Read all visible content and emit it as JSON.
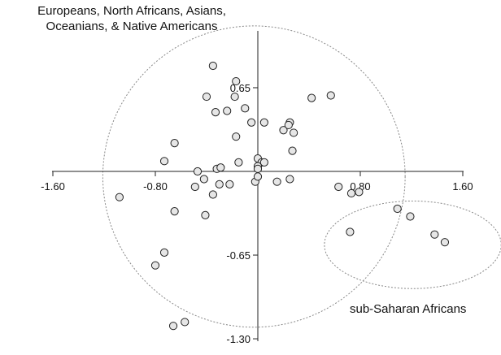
{
  "chart_data": {
    "type": "scatter",
    "title": "",
    "xlabel": "",
    "ylabel": "",
    "xlim": [
      -1.6,
      1.6
    ],
    "ylim": [
      -1.3,
      1.3
    ],
    "x_ticks": [
      -1.6,
      -0.8,
      0.8,
      1.6
    ],
    "x_tick_labels": [
      "-1.60",
      "-0.80",
      "0.80",
      "1.60"
    ],
    "y_ticks": [
      0.65,
      -0.65,
      -1.3
    ],
    "y_tick_labels": [
      "0.65",
      "-0.65",
      "-1.30"
    ],
    "grid": false,
    "clusters": [
      {
        "label_line1": "Europeans, North Africans, Asians,",
        "label_line2": "Oceanians, & Native Americans",
        "shape": "dotted-ellipse",
        "center": [
          -0.03,
          -0.04
        ],
        "radii": [
          1.18,
          1.17
        ]
      },
      {
        "label": "sub-Saharan Africans",
        "shape": "dotted-ellipse",
        "center": [
          1.21,
          -0.57
        ],
        "radii": [
          0.69,
          0.34
        ]
      }
    ],
    "series": [
      {
        "points": [
          [
            -0.35,
            0.82
          ],
          [
            -0.17,
            0.7
          ],
          [
            -0.4,
            0.58
          ],
          [
            -0.18,
            0.58
          ],
          [
            0.42,
            0.57
          ],
          [
            0.57,
            0.59
          ],
          [
            -0.1,
            0.49
          ],
          [
            -0.33,
            0.46
          ],
          [
            -0.24,
            0.47
          ],
          [
            0.25,
            0.38
          ],
          [
            0.05,
            0.38
          ],
          [
            -0.05,
            0.38
          ],
          [
            0.2,
            0.32
          ],
          [
            0.28,
            0.3
          ],
          [
            0.24,
            0.36
          ],
          [
            -0.17,
            0.27
          ],
          [
            -0.65,
            0.22
          ],
          [
            0.27,
            0.16
          ],
          [
            -0.73,
            0.08
          ],
          [
            0.0,
            0.1
          ],
          [
            -0.15,
            0.07
          ],
          [
            0.03,
            0.07
          ],
          [
            0.05,
            0.07
          ],
          [
            0.0,
            0.04
          ],
          [
            0.0,
            0.02
          ],
          [
            -0.47,
            0.0
          ],
          [
            -0.32,
            0.02
          ],
          [
            -0.29,
            0.03
          ],
          [
            -0.42,
            -0.06
          ],
          [
            -0.3,
            -0.1
          ],
          [
            -0.49,
            -0.12
          ],
          [
            -0.22,
            -0.1
          ],
          [
            -0.02,
            -0.08
          ],
          [
            0.0,
            -0.04
          ],
          [
            -0.35,
            -0.18
          ],
          [
            -1.08,
            -0.2
          ],
          [
            0.15,
            -0.08
          ],
          [
            0.25,
            -0.06
          ],
          [
            -0.65,
            -0.31
          ],
          [
            -0.41,
            -0.34
          ],
          [
            0.63,
            -0.12
          ],
          [
            0.73,
            -0.17
          ],
          [
            0.79,
            -0.16
          ],
          [
            1.09,
            -0.29
          ],
          [
            1.19,
            -0.35
          ],
          [
            0.72,
            -0.47
          ],
          [
            1.38,
            -0.49
          ],
          [
            1.46,
            -0.55
          ],
          [
            -0.73,
            -0.63
          ],
          [
            -0.8,
            -0.73
          ],
          [
            -0.66,
            -1.2
          ],
          [
            -0.57,
            -1.17
          ]
        ]
      }
    ]
  }
}
